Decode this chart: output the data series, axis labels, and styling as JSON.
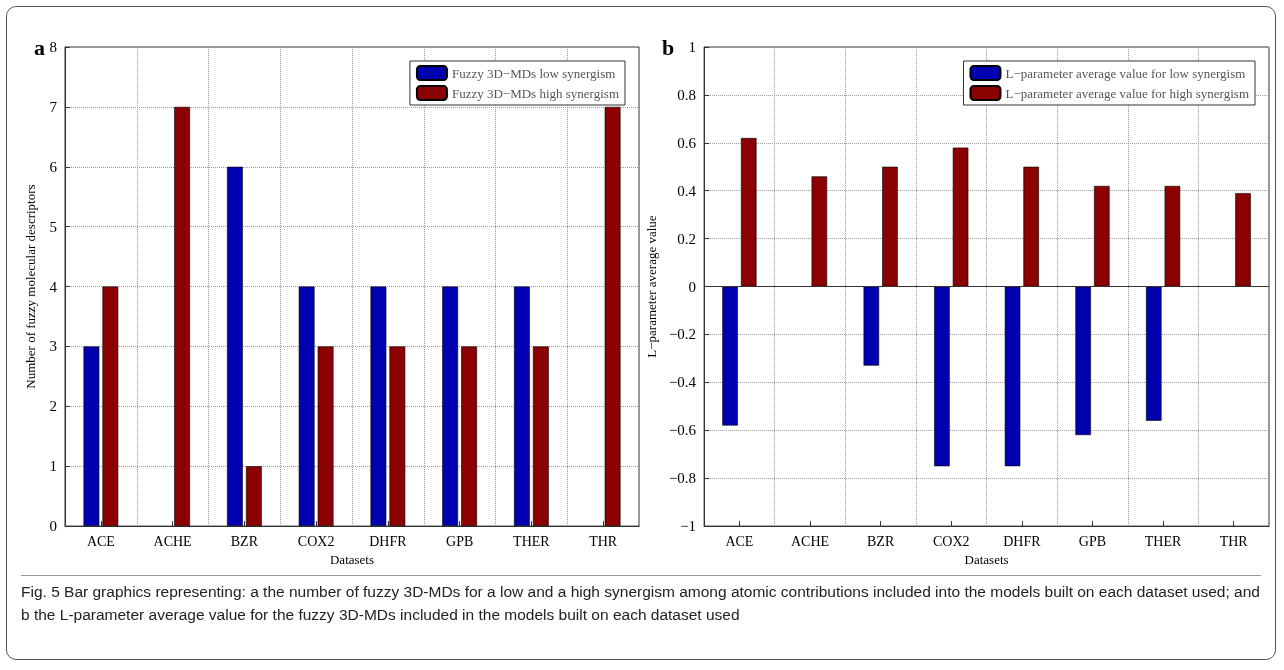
{
  "chart_data": [
    {
      "type": "bar",
      "title": "a",
      "xlabel": "Datasets",
      "ylabel": "Number of fuzzy molecular descriptors",
      "categories": [
        "ACE",
        "ACHE",
        "BZR",
        "COX2",
        "DHFR",
        "GPB",
        "THER",
        "THR"
      ],
      "series": [
        {
          "name": "Fuzzy 3D−MDs low synergism",
          "color": "#0000b0",
          "values": [
            3,
            null,
            6,
            4,
            4,
            4,
            4,
            null
          ]
        },
        {
          "name": "Fuzzy 3D−MDs high synergism",
          "color": "#8b0000",
          "values": [
            4,
            7,
            1,
            3,
            3,
            3,
            3,
            7
          ]
        }
      ],
      "ylim": [
        0,
        8
      ],
      "yticks": [
        0,
        1,
        2,
        3,
        4,
        5,
        6,
        7,
        8
      ],
      "grid": true,
      "legend": "top right",
      "annotations": [
        "Fig. 5  Bar graphics representing: a the number of fuzzy 3D-MDs for a low and a high synergism among atomic contributions included into the models built on each dataset used; and b the L-parameter average value for the fuzzy 3D-MDs included in the models built on each dataset used"
      ]
    },
    {
      "type": "bar",
      "title": "b",
      "xlabel": "Datasets",
      "ylabel": "L−parameter average value",
      "categories": [
        "ACE",
        "ACHE",
        "BZR",
        "COX2",
        "DHFR",
        "GPB",
        "THER",
        "THR"
      ],
      "series": [
        {
          "name": "L−parameter average value for low synergism",
          "color": "#0000b0",
          "values": [
            -0.58,
            null,
            -0.33,
            -0.75,
            -0.75,
            -0.62,
            -0.56,
            null
          ]
        },
        {
          "name": "L−parameter average value for high synergism",
          "color": "#8b0000",
          "values": [
            0.62,
            0.46,
            0.5,
            0.58,
            0.5,
            0.42,
            0.42,
            0.39
          ]
        }
      ],
      "ylim": [
        -1,
        1
      ],
      "yticks": [
        -1,
        -0.8,
        -0.6,
        -0.4,
        -0.2,
        0,
        0.2,
        0.4,
        0.6,
        0.8,
        1
      ],
      "grid": true,
      "legend": "top right",
      "ref_lines": [
        {
          "axis": "y",
          "value": 0,
          "color": "#333333"
        }
      ]
    }
  ]
}
